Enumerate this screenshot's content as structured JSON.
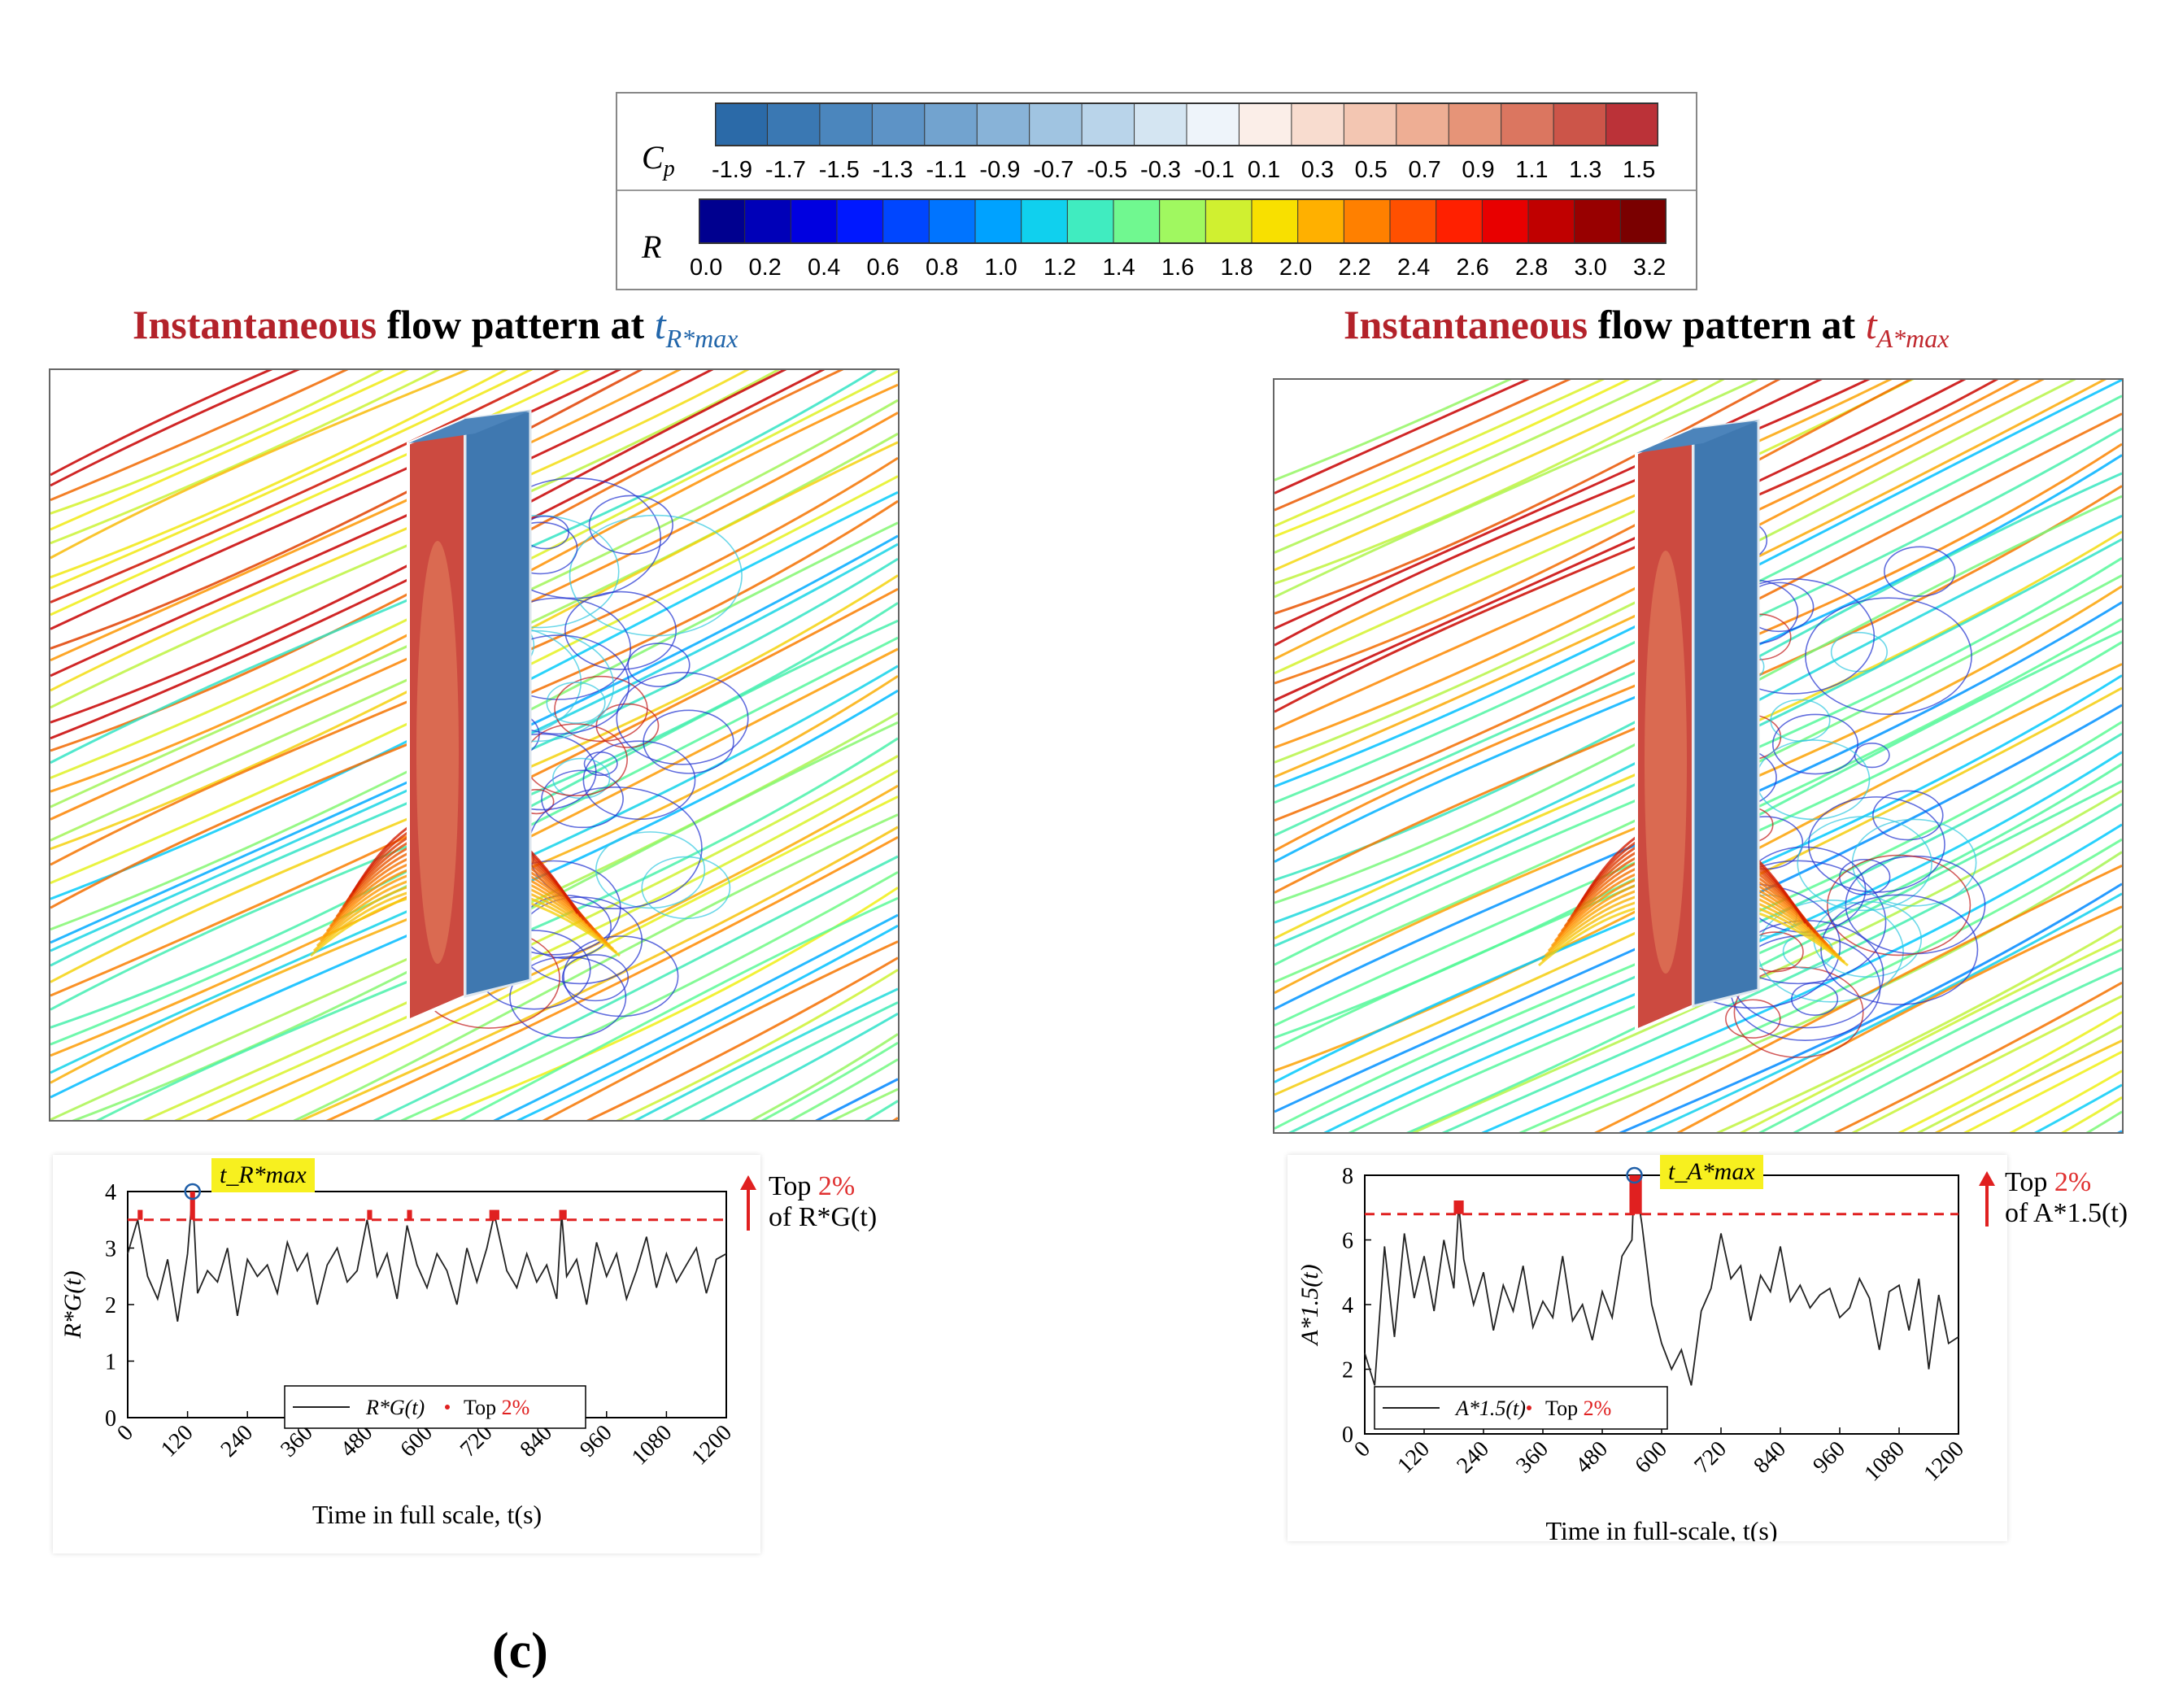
{
  "colorbars": {
    "cp": {
      "label": "C",
      "label_sub": "p",
      "ticks": [
        "-1.9",
        "-1.7",
        "-1.5",
        "-1.3",
        "-1.1",
        "-0.9",
        "-0.7",
        "-0.5",
        "-0.3",
        "-0.1",
        "0.1",
        "0.3",
        "0.5",
        "0.7",
        "0.9",
        "1.1",
        "1.3",
        "1.5"
      ],
      "colors": [
        "#2b6aa8",
        "#3a78b3",
        "#4b86bd",
        "#5d93c6",
        "#72a3cf",
        "#88b3d8",
        "#a0c4e1",
        "#b9d4ea",
        "#d4e5f2",
        "#eef4fa",
        "#fbeee8",
        "#f8dccf",
        "#f3c6b2",
        "#eeae94",
        "#e69478",
        "#db7660",
        "#cc5549",
        "#bb3238"
      ]
    },
    "r": {
      "label": "R",
      "ticks": [
        "0.0",
        "0.2",
        "0.4",
        "0.6",
        "0.8",
        "1.0",
        "1.2",
        "1.4",
        "1.6",
        "1.8",
        "2.0",
        "2.2",
        "2.4",
        "2.6",
        "2.8",
        "3.0",
        "3.2"
      ],
      "colors": [
        "#00008f",
        "#0000b8",
        "#0000e0",
        "#0018ff",
        "#0046ff",
        "#0074ff",
        "#00a2ff",
        "#10d0ee",
        "#40ecc0",
        "#70f890",
        "#a0f860",
        "#d0f030",
        "#f8e000",
        "#ffb000",
        "#ff8000",
        "#ff5000",
        "#ff2000",
        "#e80000",
        "#c00000",
        "#980000",
        "#7a0000"
      ]
    }
  },
  "left": {
    "title": {
      "word1": "Instantaneous",
      "word2": " flow pattern at ",
      "sym": "t",
      "sub": "R*max"
    },
    "history": {
      "highlight": "t_R*max",
      "note_line1_pre": "Top ",
      "note_line1_red": "2%",
      "note_line2": "of R*G(t)",
      "legend_line": "R*G(t)",
      "legend_top_pre": "Top ",
      "legend_top_red": "2%"
    }
  },
  "right": {
    "title": {
      "word1": "Instantaneous",
      "word2": " flow pattern at ",
      "sym": "t",
      "sub": "A*max"
    },
    "history": {
      "highlight": "t_A*max",
      "note_line1_pre": "Top ",
      "note_line1_red": "2%",
      "note_line2": "of A*1.5(t)",
      "legend_line": "A*1.5(t)",
      "legend_top_pre": "Top ",
      "legend_top_red": "2%"
    }
  },
  "caption": "(c)",
  "chart_data": [
    {
      "type": "line",
      "panel": "left",
      "xlabel": "Time in full scale, t(s)",
      "ylabel": "R*G(t)",
      "xlim": [
        0,
        1200
      ],
      "ylim": [
        0,
        4
      ],
      "xticks": [
        "0",
        "120",
        "240",
        "360",
        "480",
        "600",
        "720",
        "840",
        "960",
        "1080",
        "1200"
      ],
      "yticks": [
        "0",
        "1",
        "2",
        "3",
        "4"
      ],
      "threshold": 3.5,
      "peak": {
        "x": 130,
        "y": 4.0
      },
      "peak_regions": [
        [
          20,
          30
        ],
        [
          125,
          135
        ],
        [
          480,
          490
        ],
        [
          560,
          570
        ],
        [
          725,
          745
        ],
        [
          865,
          880
        ]
      ],
      "series": [
        {
          "name": "R*G(t)",
          "x": [
            0,
            20,
            40,
            60,
            80,
            100,
            120,
            130,
            140,
            160,
            180,
            200,
            220,
            240,
            260,
            280,
            300,
            320,
            340,
            360,
            380,
            400,
            420,
            440,
            460,
            480,
            500,
            520,
            540,
            560,
            580,
            600,
            620,
            640,
            660,
            680,
            700,
            720,
            735,
            760,
            780,
            800,
            820,
            840,
            860,
            870,
            880,
            900,
            920,
            940,
            960,
            980,
            1000,
            1020,
            1040,
            1060,
            1080,
            1100,
            1120,
            1140,
            1160,
            1180,
            1200
          ],
          "y": [
            2.9,
            3.5,
            2.5,
            2.1,
            2.8,
            1.7,
            2.9,
            4.0,
            2.2,
            2.6,
            2.4,
            3.0,
            1.8,
            2.8,
            2.5,
            2.7,
            2.2,
            3.1,
            2.6,
            2.9,
            2.0,
            2.7,
            3.0,
            2.4,
            2.6,
            3.5,
            2.5,
            2.9,
            2.1,
            3.4,
            2.7,
            2.3,
            2.9,
            2.6,
            2.0,
            3.0,
            2.4,
            3.0,
            3.6,
            2.6,
            2.3,
            2.9,
            2.4,
            2.7,
            2.1,
            3.6,
            2.5,
            2.8,
            2.0,
            3.1,
            2.5,
            2.9,
            2.1,
            2.6,
            3.2,
            2.3,
            2.9,
            2.4,
            2.7,
            3.0,
            2.2,
            2.8,
            2.9
          ]
        }
      ]
    },
    {
      "type": "line",
      "panel": "right",
      "xlabel": "Time in full-scale, t(s)",
      "ylabel": "A*1.5(t)",
      "xlim": [
        0,
        1200
      ],
      "ylim": [
        0,
        8
      ],
      "xticks": [
        "0",
        "120",
        "240",
        "360",
        "480",
        "600",
        "720",
        "840",
        "960",
        "1080",
        "1200"
      ],
      "yticks": [
        "0",
        "2",
        "4",
        "6",
        "8"
      ],
      "threshold": 6.8,
      "peak": {
        "x": 545,
        "y": 8.0
      },
      "peak_regions": [
        [
          180,
          200
        ],
        [
          535,
          560
        ]
      ],
      "series": [
        {
          "name": "A*1.5(t)",
          "x": [
            0,
            20,
            40,
            60,
            80,
            100,
            120,
            140,
            160,
            180,
            190,
            200,
            220,
            240,
            260,
            280,
            300,
            320,
            340,
            360,
            380,
            400,
            420,
            440,
            460,
            480,
            500,
            520,
            540,
            545,
            560,
            580,
            600,
            620,
            640,
            660,
            680,
            700,
            720,
            740,
            760,
            780,
            800,
            820,
            840,
            860,
            880,
            900,
            920,
            940,
            960,
            980,
            1000,
            1020,
            1040,
            1060,
            1080,
            1100,
            1120,
            1140,
            1160,
            1180,
            1200
          ],
          "y": [
            2.5,
            1.5,
            5.8,
            3.0,
            6.2,
            4.2,
            5.5,
            3.8,
            6.0,
            4.5,
            7.1,
            5.4,
            4.0,
            5.0,
            3.2,
            4.6,
            3.8,
            5.2,
            3.3,
            4.1,
            3.6,
            5.5,
            3.5,
            4.0,
            2.9,
            4.4,
            3.6,
            5.5,
            6.0,
            8.0,
            6.5,
            4.0,
            2.8,
            2.0,
            2.6,
            1.5,
            3.8,
            4.5,
            6.2,
            4.8,
            5.2,
            3.5,
            4.9,
            4.4,
            5.8,
            4.1,
            4.6,
            3.9,
            4.3,
            4.5,
            3.6,
            3.9,
            4.8,
            4.2,
            2.6,
            4.4,
            4.6,
            3.2,
            4.8,
            2.0,
            4.3,
            2.8,
            3.0
          ]
        }
      ]
    }
  ]
}
